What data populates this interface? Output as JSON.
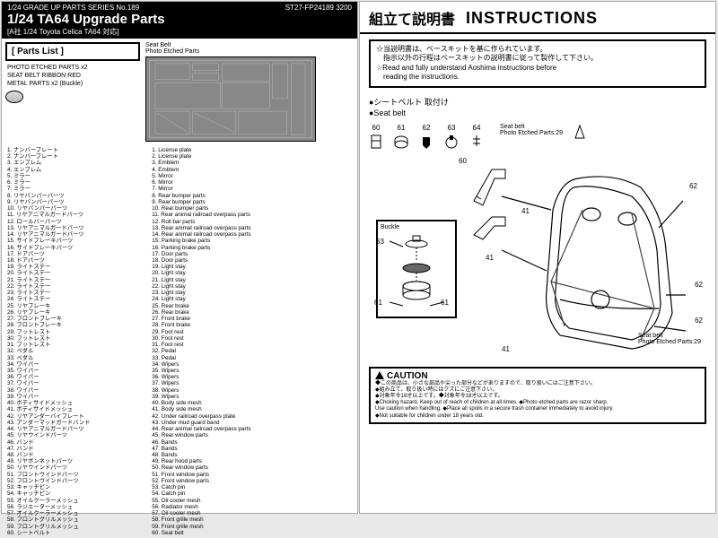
{
  "header": {
    "series": "1/24 GRADE UP PARTS SERIES No.189",
    "code": "ST27-FP24189 3200",
    "title": "1/24 TA64 Upgrade Parts",
    "sub": "[A社 1/24 Toyota Celica TA64 対応]"
  },
  "partsListTitle": "[ Parts List ]",
  "partsListItems": "PHOTO ETCHED PARTS x2\nSEAT BELT RIBBON  RED\nMETAL PARTS x2 (Buckle)",
  "beltLabel": "Seat Belt\nPhoto Etched Parts",
  "listJp": [
    "1. ナンバープレート",
    "2. ナンバープレート",
    "3. エンブレム",
    "4. エンブレム",
    "5. ミラー",
    "6. ミラー",
    "7. ミラー",
    "8. リヤバンパーパーツ",
    "9. リヤバンパーパーツ",
    "10. リヤバンパーパーツ",
    "11. リヤアニマルガードパーツ",
    "12. ロールバーパーツ",
    "13. リヤアニマルガードパーツ",
    "14. リヤアニマルガードパーツ",
    "15. サイドブレーキパーツ",
    "16. サイドブレーキパーツ",
    "17. ドアパーツ",
    "18. ドアパーツ",
    "19. ライトステー",
    "20. ライトステー",
    "21. ライトステー",
    "22. ライトステー",
    "23. ライトステー",
    "24. ライトステー",
    "25. リヤブレーキ",
    "26. リヤブレーキ",
    "27. フロントブレーキ",
    "28. フロントブレーキ",
    "29. フットレスト",
    "30. フットレスト",
    "31. フットレスト",
    "32. ペダル",
    "33. ペダル",
    "34. ワイパー",
    "35. ワイパー",
    "36. ワイパー",
    "37. ワイパー",
    "38. ワイパー",
    "39. ワイパー",
    "40. ボディサイドメッシュ",
    "41. ボディサイドメッシュ",
    "42. リヤアンダーバイブレート",
    "43. アンダーマッドガードバンド",
    "44. リヤアニマルガードパーツ",
    "45. リヤウインドパーツ",
    "46. バンド",
    "47. バンド",
    "48. バンド",
    "49. リヤボンネットパーツ",
    "50. リヤウインドパーツ",
    "51. フロントウインドパーツ",
    "52. フロントウインドパーツ",
    "53. キャッチピン",
    "54. キャッチピン",
    "55. オイルクーラーメッシュ",
    "56. ラジエーターメッシュ",
    "57. オイルクーラーメッシュ",
    "58. フロントグリルメッシュ",
    "59. フロントグリルメッシュ",
    "60. シートベルト"
  ],
  "listEn": [
    "1. License plate",
    "2. License plate",
    "3. Emblem",
    "4. Emblem",
    "5. Mirror",
    "6. Mirror",
    "7. Mirror",
    "8. Rear bumper parts",
    "9. Rear bumper parts",
    "10. Rear bumper parts",
    "11. Rear animal railroad overpass parts",
    "12. Roll bar parts",
    "13. Rear animal railroad overpass parts",
    "14. Rear animal railroad overpass parts",
    "15. Parking brake parts",
    "16. Parking brake parts",
    "17. Door parts",
    "18. Door parts",
    "19. Light stay",
    "20. Light stay",
    "21. Light stay",
    "22. Light stay",
    "23. Light stay",
    "24. Light stay",
    "25. Rear brake",
    "26. Rear brake",
    "27. Front brake",
    "28. Front brake",
    "29. Foot rest",
    "30. Foot rest",
    "31. Foot rest",
    "32. Pedal",
    "33. Pedal",
    "34. Wipers",
    "35. Wipers",
    "36. Wipers",
    "37. Wipers",
    "38. Wipers",
    "39. Wipers",
    "40. Body side mesh",
    "41. Body side mesh",
    "42. Under railroad overpass plate",
    "43. Under mud guard band",
    "44. Rear animal railroad overpass parts",
    "45. Rear window parts",
    "46. Bands",
    "47. Bands",
    "48. Bands",
    "49. Rear hood parts",
    "50. Rear window parts",
    "51. Front window parts",
    "52. Front window parts",
    "53. Catch pin",
    "54. Catch pin",
    "55. Oil cooler mesh",
    "56. Radiator mesh",
    "57. Oil cooler mesh",
    "58. Front grille mesh",
    "59. Front grille mesh",
    "60. Seat belt"
  ],
  "rightTitle": {
    "jp": "組立て説明書",
    "en": "INSTRUCTIONS"
  },
  "noteBox": "☆当説明書は、ベースキットを基に作られています。\n　指示以外の行程はベースキットの説明書に従って製作して下さい。\n☆Read and fully understand Aoshima instructions before\n　reading the instructions.",
  "sectionJp": "●シートベルト 取付け",
  "sectionEn": "●Seat belt",
  "partsRowNums": [
    "60",
    "61",
    "62",
    "63",
    "64"
  ],
  "beltNote2": "Seat belt\nPhoto Etched Parts:29",
  "buckleLabel": "Buckle",
  "buckleNums": [
    "63",
    "61",
    "61"
  ],
  "callouts": {
    "c60": "60",
    "c62a": "62",
    "c62b": "62",
    "c62c": "62",
    "c41a": "41",
    "c41b": "41",
    "c41c": "41",
    "belt": "Seat belt\nPhoto Etched Parts:29"
  },
  "cautionTitle": "CAUTION",
  "cautionText": "◆この商品は、小さな部品や尖った部分などがありますので、取り扱いにはご注意下さい。\n◆組み立て、取り扱い時にはクズにご注意下さい。\n◆対象年令18才以上です。◆対象年令18才以上です。\n◆Choking hazard. Keep out of reach of children at all times. ◆Photo etched parts are razor sharp.\nUse caution when handling. ◆Place all spoils in a secure trash container immediately to avoid injury.\n◆Not suitable for children under 18 years old."
}
